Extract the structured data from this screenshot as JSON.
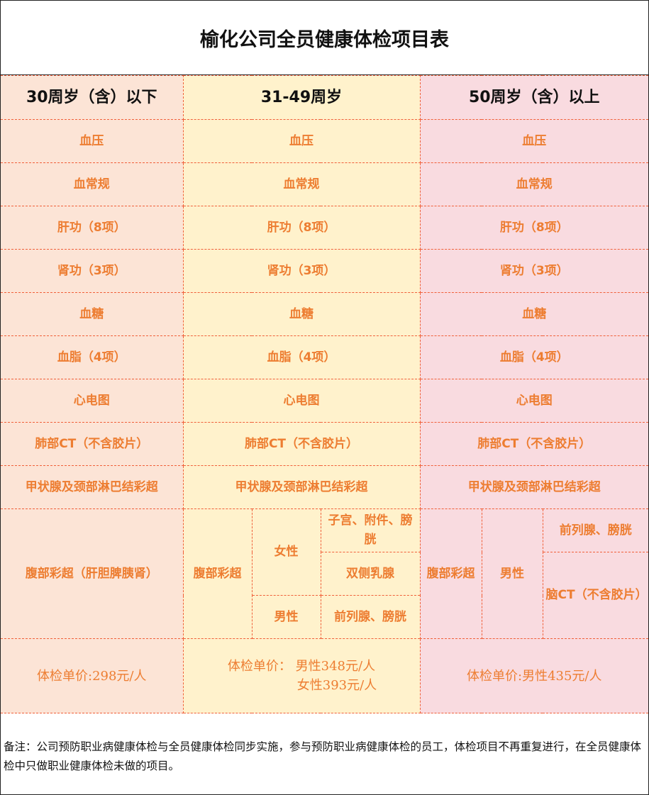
{
  "title": "榆化公司全员健康体检项目表",
  "headers": [
    "30周岁（含）以下",
    "31-49周岁",
    "50周岁（含）以上"
  ],
  "items": [
    "血压",
    "血常规",
    "肝功（8项）",
    "肾功（3项）",
    "血糖",
    "血脂（4项）",
    "心电图",
    "肺部CT（不含胶片）",
    "甲状腺及颈部淋巴结彩超"
  ],
  "abdomen": {
    "col1": "腹部彩超（肝胆脾胰肾）",
    "col2": {
      "label": "腹部彩超",
      "female": "女性",
      "female_items": [
        "子宫、附件、膀胱",
        "双侧乳腺"
      ],
      "male": "男性",
      "male_items": [
        "前列腺、膀胱"
      ]
    },
    "col3": {
      "label": "腹部彩超",
      "male": "男性",
      "male_items": [
        "前列腺、膀胱",
        "脑CT（不含胶片）"
      ]
    }
  },
  "prices": {
    "col1": "体检单价:298元/人",
    "col2_line1": "体检单价： 男性348元/人",
    "col2_line2": "女性393元/人",
    "col3": "体检单价:男性435元/人"
  },
  "note": "备注：公司预防职业病健康体检与全员健康体检同步实施，参与预防职业病健康体检的员工，体检项目不再重复进行，在全员健康体检中只做职业健康体检未做的项目。"
}
